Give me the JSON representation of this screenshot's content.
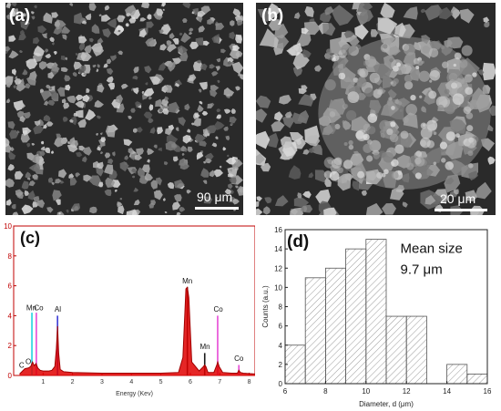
{
  "panels": {
    "a": {
      "label": "(a)",
      "scale_text": "90 μm"
    },
    "b": {
      "label": "(b)",
      "scale_text": "20 μm"
    },
    "c": {
      "label": "(c)"
    },
    "d": {
      "label": "(d)"
    }
  },
  "chart_data": [
    {
      "type": "line",
      "panel": "c",
      "xlabel": "Energy (Kev)",
      "ylabel": "",
      "xlim": [
        0,
        8.2
      ],
      "ylim": [
        0,
        10
      ],
      "xticks": [
        1,
        2,
        3,
        4,
        5,
        6,
        7,
        8
      ],
      "yticks": [
        0,
        2,
        4,
        6,
        8,
        10
      ],
      "ytick_labels": [
        "0",
        "2",
        "4",
        "6",
        "8",
        "10"
      ],
      "series": [
        {
          "color": "#e00000",
          "x": [
            0.2,
            0.28,
            0.38,
            0.5,
            0.58,
            0.64,
            0.7,
            0.76,
            0.82,
            0.9,
            1.0,
            1.1,
            1.2,
            1.3,
            1.4,
            1.45,
            1.49,
            1.53,
            1.58,
            1.7,
            2.0,
            3.0,
            4.0,
            5.0,
            5.6,
            5.75,
            5.85,
            5.9,
            5.95,
            6.05,
            6.3,
            6.45,
            6.49,
            6.53,
            6.6,
            6.8,
            6.9,
            6.93,
            6.98,
            7.1,
            7.4,
            7.6,
            7.65,
            7.7,
            7.8,
            8.2
          ],
          "y": [
            0.1,
            0.25,
            0.45,
            0.5,
            0.6,
            0.9,
            0.65,
            0.8,
            0.5,
            0.35,
            0.3,
            0.3,
            0.3,
            0.35,
            0.6,
            1.8,
            3.3,
            1.5,
            0.4,
            0.25,
            0.2,
            0.15,
            0.15,
            0.15,
            0.2,
            1.2,
            5.8,
            5.9,
            5.2,
            0.9,
            0.3,
            0.6,
            0.7,
            0.6,
            0.2,
            0.2,
            0.7,
            0.9,
            0.6,
            0.2,
            0.15,
            0.15,
            0.35,
            0.2,
            0.15,
            0.1
          ]
        }
      ],
      "peak_lines": [
        {
          "x": 0.62,
          "y": 4.2,
          "color": "#1fd3e0"
        },
        {
          "x": 0.77,
          "y": 4.2,
          "color": "#e64ad6"
        },
        {
          "x": 1.49,
          "y": 4.0,
          "color": "#3b3bd6"
        },
        {
          "x": 5.9,
          "y": 5.9,
          "color": "#1a1a1a"
        },
        {
          "x": 6.49,
          "y": 1.5,
          "color": "#1a1a1a"
        },
        {
          "x": 6.93,
          "y": 4.0,
          "color": "#e64ad6"
        },
        {
          "x": 7.65,
          "y": 0.7,
          "color": "#e64ad6"
        }
      ],
      "annotations": [
        {
          "text": "Mn",
          "x": 0.6,
          "y": 4.3
        },
        {
          "text": "Co",
          "x": 0.85,
          "y": 4.3
        },
        {
          "text": "Al",
          "x": 1.5,
          "y": 4.2
        },
        {
          "text": "Mn",
          "x": 5.9,
          "y": 6.1
        },
        {
          "text": "Mn",
          "x": 6.5,
          "y": 1.7
        },
        {
          "text": "Co",
          "x": 6.95,
          "y": 4.2
        },
        {
          "text": "Co",
          "x": 7.65,
          "y": 0.9
        },
        {
          "text": "C",
          "x": 0.27,
          "y": 0.45
        },
        {
          "text": "O",
          "x": 0.5,
          "y": 0.7
        }
      ]
    },
    {
      "type": "bar",
      "panel": "d",
      "xlabel": "Diameter, d (μm)",
      "ylabel": "Counts (a.u.)",
      "xlim": [
        6,
        16
      ],
      "ylim": [
        0,
        16
      ],
      "xticks": [
        6,
        8,
        10,
        12,
        14,
        16
      ],
      "yticks": [
        0,
        2,
        4,
        6,
        8,
        10,
        12,
        14,
        16
      ],
      "bins": [
        {
          "x0": 6,
          "x1": 7,
          "value": 4
        },
        {
          "x0": 7,
          "x1": 8,
          "value": 11
        },
        {
          "x0": 8,
          "x1": 9,
          "value": 12
        },
        {
          "x0": 9,
          "x1": 10,
          "value": 14
        },
        {
          "x0": 10,
          "x1": 11,
          "value": 15
        },
        {
          "x0": 11,
          "x1": 12,
          "value": 7
        },
        {
          "x0": 12,
          "x1": 13,
          "value": 7
        },
        {
          "x0": 13,
          "x1": 14,
          "value": 0
        },
        {
          "x0": 14,
          "x1": 15,
          "value": 2
        },
        {
          "x0": 15,
          "x1": 16,
          "value": 1
        }
      ],
      "annotation_lines": [
        "Mean size",
        "9.7 μm"
      ]
    }
  ]
}
